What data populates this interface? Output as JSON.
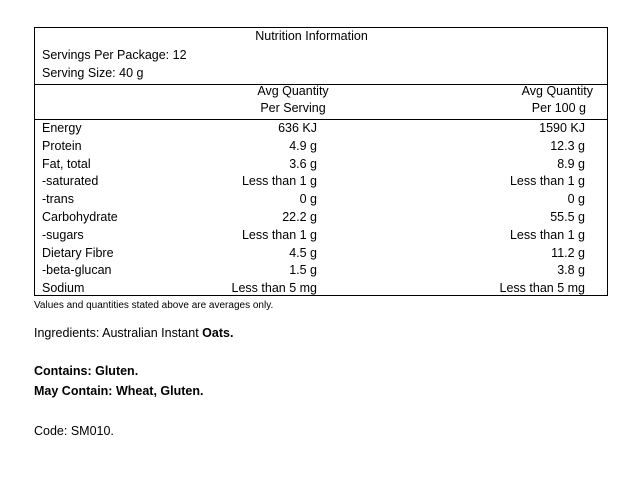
{
  "panel": {
    "title": "Nutrition Information",
    "servings_per_package": "Servings Per Package: 12",
    "serving_size": "Serving Size: 40 g",
    "col1_header_line1": "Avg Quantity",
    "col1_header_line2": "Per Serving",
    "col2_header_line1": "Avg Quantity",
    "col2_header_line2": "Per 100 g",
    "rows": [
      {
        "label": "Energy",
        "per_serving": "636 KJ",
        "per_100g": "1590 KJ"
      },
      {
        "label": "Protein",
        "per_serving": "4.9 g",
        "per_100g": "12.3 g"
      },
      {
        "label": "Fat, total",
        "per_serving": "3.6 g",
        "per_100g": "8.9  g"
      },
      {
        "label": "-saturated",
        "per_serving": "Less than 1 g",
        "per_100g": "Less than 1 g"
      },
      {
        "label": "-trans",
        "per_serving": "0 g",
        "per_100g": "0 g"
      },
      {
        "label": "Carbohydrate",
        "per_serving": "22.2 g",
        "per_100g": "55.5 g"
      },
      {
        "label": "-sugars",
        "per_serving": "Less than  1 g",
        "per_100g": "Less than 1 g"
      },
      {
        "label": "Dietary Fibre",
        "per_serving": "4.5 g",
        "per_100g": "11.2 g"
      },
      {
        "label": "-beta-glucan",
        "per_serving": "1.5 g",
        "per_100g": "3.8 g"
      },
      {
        "label": "Sodium",
        "per_serving": "Less than 5 mg",
        "per_100g": "Less than 5 mg"
      }
    ],
    "footnote": "Values and quantities stated above are averages only."
  },
  "ingredients": {
    "prefix": "Ingredients: Australian Instant ",
    "bold": "Oats."
  },
  "contains": "Contains: Gluten.",
  "may_contain": "May Contain: Wheat, Gluten.",
  "code": "Code: SM010."
}
